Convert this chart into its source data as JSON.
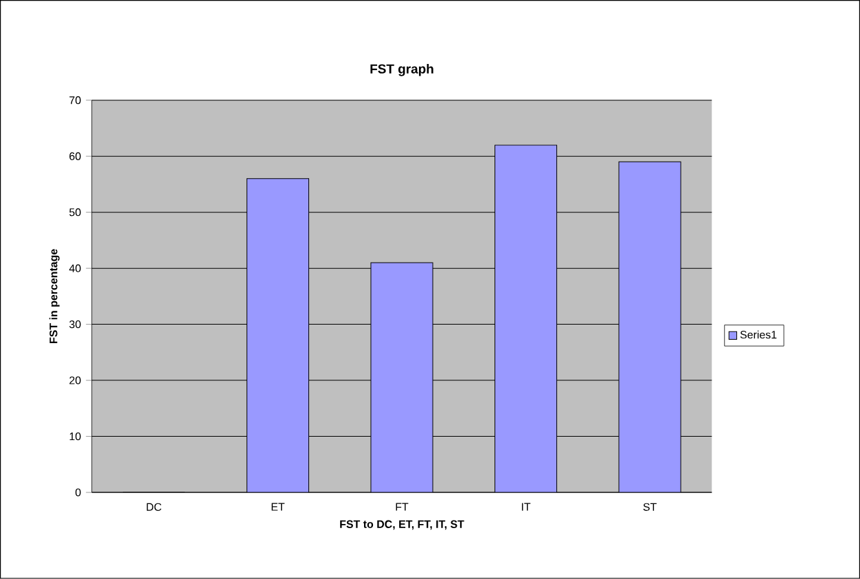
{
  "chart_data": {
    "type": "bar",
    "title": "FST graph",
    "xlabel": "FST to DC, ET, FT, IT, ST",
    "ylabel": "FST in percentage",
    "categories": [
      "DC",
      "ET",
      "FT",
      "IT",
      "ST"
    ],
    "series": [
      {
        "name": "Series1",
        "color": "#9999ff",
        "values": [
          0,
          56,
          41,
          62,
          59
        ]
      }
    ],
    "ylim": [
      0,
      70
    ],
    "yticks": [
      0,
      10,
      20,
      30,
      40,
      50,
      60,
      70
    ],
    "grid": "y",
    "legend": "right"
  }
}
